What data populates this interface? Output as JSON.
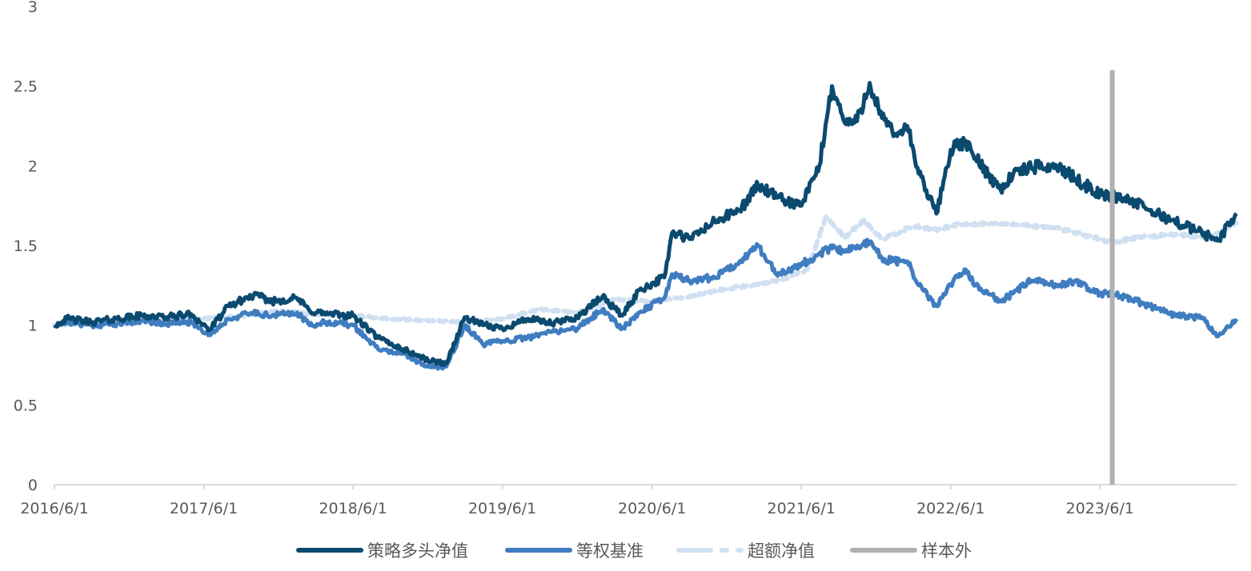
{
  "chart_data": {
    "type": "line",
    "title": "",
    "xlabel": "",
    "ylabel": "",
    "ylim": [
      0,
      3
    ],
    "y_ticks": [
      "0",
      "0.5",
      "1",
      "1.5",
      "2",
      "2.5",
      "3"
    ],
    "x_range": [
      "2016-06-01",
      "2024-04-30"
    ],
    "x_tick_labels": [
      "2016/6/1",
      "2017/6/1",
      "2018/6/1",
      "2019/6/1",
      "2020/6/1",
      "2021/6/1",
      "2022/6/1",
      "2023/6/1"
    ],
    "grid": false,
    "legend_position": "bottom",
    "sample_out_start": "2023-07-01",
    "legend": [
      {
        "key": "strategy",
        "label": "策略多头净值",
        "color": "#0b4a6f",
        "style": "solid"
      },
      {
        "key": "benchmark",
        "label": "等权基准",
        "color": "#3f7dc0",
        "style": "solid"
      },
      {
        "key": "excess",
        "label": "超额净值",
        "color": "#cfe0f1",
        "style": "dashed"
      },
      {
        "key": "oos",
        "label": "样本外",
        "color": "#b0b0b0",
        "style": "solid"
      }
    ],
    "series": [
      {
        "name": "策略多头净值",
        "color": "#0b4a6f",
        "x": [
          "2016-06-01",
          "2016-07-01",
          "2016-09-01",
          "2016-11-01",
          "2017-01-01",
          "2017-03-01",
          "2017-05-01",
          "2017-06-15",
          "2017-08-01",
          "2017-10-01",
          "2017-11-15",
          "2018-01-15",
          "2018-02-15",
          "2018-04-01",
          "2018-06-01",
          "2018-08-01",
          "2018-10-01",
          "2018-12-01",
          "2019-01-15",
          "2019-03-01",
          "2019-04-15",
          "2019-06-01",
          "2019-08-01",
          "2019-10-01",
          "2019-12-01",
          "2020-02-01",
          "2020-03-20",
          "2020-05-01",
          "2020-07-01",
          "2020-07-20",
          "2020-09-01",
          "2020-11-01",
          "2021-01-01",
          "2021-02-15",
          "2021-04-01",
          "2021-06-01",
          "2021-07-15",
          "2021-08-15",
          "2021-09-15",
          "2021-10-15",
          "2021-11-15",
          "2021-12-15",
          "2022-01-15",
          "2022-02-15",
          "2022-03-15",
          "2022-04-27",
          "2022-06-01",
          "2022-07-05",
          "2022-08-01",
          "2022-10-01",
          "2022-11-01",
          "2022-12-15",
          "2023-02-15",
          "2023-04-01",
          "2023-06-01",
          "2023-08-01",
          "2023-10-01",
          "2023-12-01",
          "2024-02-05",
          "2024-03-15",
          "2024-04-30"
        ],
        "values": [
          1.0,
          1.04,
          1.02,
          1.04,
          1.06,
          1.05,
          1.07,
          0.97,
          1.12,
          1.19,
          1.15,
          1.17,
          1.09,
          1.07,
          1.06,
          0.92,
          0.85,
          0.78,
          0.76,
          1.05,
          1.0,
          0.98,
          1.04,
          1.01,
          1.05,
          1.18,
          1.06,
          1.22,
          1.3,
          1.58,
          1.54,
          1.65,
          1.72,
          1.88,
          1.8,
          1.75,
          2.0,
          2.5,
          2.27,
          2.28,
          2.52,
          2.3,
          2.19,
          2.25,
          1.95,
          1.7,
          2.1,
          2.15,
          2.05,
          1.85,
          1.95,
          1.99,
          2.0,
          1.92,
          1.82,
          1.8,
          1.72,
          1.65,
          1.58,
          1.53,
          1.7
        ]
      },
      {
        "name": "等权基准",
        "color": "#3f7dc0",
        "x": [
          "2016-06-01",
          "2016-07-01",
          "2016-09-01",
          "2016-11-01",
          "2017-01-01",
          "2017-03-01",
          "2017-05-01",
          "2017-06-15",
          "2017-08-01",
          "2017-10-01",
          "2017-11-15",
          "2018-01-15",
          "2018-02-15",
          "2018-04-01",
          "2018-06-01",
          "2018-08-01",
          "2018-10-01",
          "2018-12-01",
          "2019-01-15",
          "2019-03-01",
          "2019-04-15",
          "2019-06-01",
          "2019-08-01",
          "2019-10-01",
          "2019-12-01",
          "2020-02-01",
          "2020-03-20",
          "2020-05-01",
          "2020-07-01",
          "2020-07-20",
          "2020-09-01",
          "2020-11-01",
          "2021-01-01",
          "2021-02-15",
          "2021-04-01",
          "2021-06-01",
          "2021-07-15",
          "2021-08-15",
          "2021-09-15",
          "2021-10-15",
          "2021-11-15",
          "2021-12-15",
          "2022-01-15",
          "2022-02-15",
          "2022-03-15",
          "2022-04-27",
          "2022-06-01",
          "2022-07-05",
          "2022-08-01",
          "2022-10-01",
          "2022-11-01",
          "2022-12-15",
          "2023-02-15",
          "2023-04-01",
          "2023-06-01",
          "2023-08-01",
          "2023-10-01",
          "2023-12-01",
          "2024-02-05",
          "2024-03-15",
          "2024-04-30"
        ],
        "values": [
          1.0,
          1.02,
          1.0,
          1.01,
          1.03,
          1.01,
          1.02,
          0.94,
          1.04,
          1.08,
          1.06,
          1.08,
          1.0,
          1.02,
          1.0,
          0.85,
          0.82,
          0.74,
          0.74,
          1.0,
          0.88,
          0.9,
          0.92,
          0.96,
          0.98,
          1.1,
          0.98,
          1.08,
          1.17,
          1.32,
          1.28,
          1.3,
          1.4,
          1.5,
          1.32,
          1.38,
          1.45,
          1.48,
          1.46,
          1.5,
          1.52,
          1.42,
          1.4,
          1.4,
          1.25,
          1.12,
          1.25,
          1.35,
          1.25,
          1.15,
          1.2,
          1.28,
          1.25,
          1.28,
          1.2,
          1.18,
          1.12,
          1.06,
          1.05,
          0.93,
          1.04
        ]
      },
      {
        "name": "超额净值",
        "color": "#cfe0f1",
        "x": [
          "2016-06-01",
          "2016-09-01",
          "2016-12-01",
          "2017-03-01",
          "2017-06-01",
          "2017-09-01",
          "2017-12-01",
          "2018-03-01",
          "2018-06-01",
          "2018-09-01",
          "2018-12-01",
          "2019-03-01",
          "2019-06-01",
          "2019-09-01",
          "2019-12-01",
          "2020-03-01",
          "2020-06-01",
          "2020-09-01",
          "2020-12-01",
          "2021-03-01",
          "2021-05-01",
          "2021-06-15",
          "2021-08-01",
          "2021-09-15",
          "2021-11-01",
          "2021-12-15",
          "2022-03-01",
          "2022-05-01",
          "2022-06-15",
          "2022-09-01",
          "2022-12-01",
          "2023-03-01",
          "2023-07-01",
          "2023-09-01",
          "2023-12-01",
          "2024-02-15",
          "2024-04-30"
        ],
        "values": [
          1.0,
          1.02,
          1.01,
          1.03,
          1.04,
          1.06,
          1.09,
          1.07,
          1.06,
          1.04,
          1.03,
          1.02,
          1.04,
          1.1,
          1.08,
          1.16,
          1.15,
          1.18,
          1.23,
          1.26,
          1.3,
          1.35,
          1.68,
          1.55,
          1.66,
          1.54,
          1.62,
          1.6,
          1.63,
          1.64,
          1.63,
          1.6,
          1.52,
          1.55,
          1.57,
          1.55,
          1.64
        ]
      }
    ]
  }
}
